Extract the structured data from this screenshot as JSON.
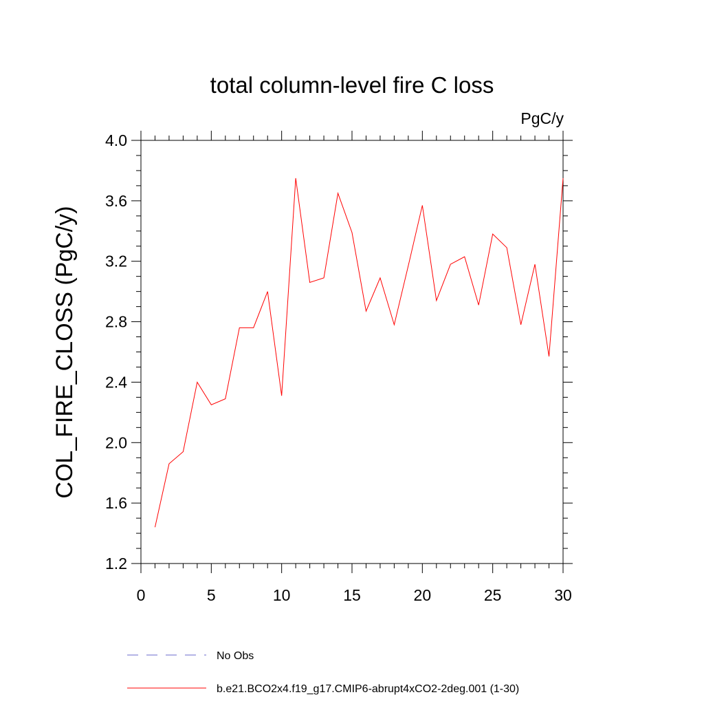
{
  "chart_data": {
    "type": "line",
    "title": "total column-level fire C loss",
    "units": "PgC/y",
    "y_label": "COL_FIRE_CLOSS  (PgC/y)",
    "x": [
      1,
      2,
      3,
      4,
      5,
      6,
      7,
      8,
      9,
      10,
      11,
      12,
      13,
      14,
      15,
      16,
      17,
      18,
      19,
      20,
      21,
      22,
      23,
      24,
      25,
      26,
      27,
      28,
      29,
      30
    ],
    "series": [
      {
        "name": "No Obs",
        "color": "#6a6acd",
        "dashed": true,
        "values": [
          null,
          null,
          null,
          null,
          null,
          null,
          null,
          null,
          null,
          null,
          null,
          null,
          null,
          null,
          null,
          null,
          null,
          null,
          null,
          null,
          null,
          null,
          null,
          null,
          null,
          null,
          null,
          null,
          null,
          null
        ]
      },
      {
        "name": "b.e21.BCO2x4.f19_g17.CMIP6-abrupt4xCO2-2deg.001 (1-30)",
        "color": "#ff0000",
        "dashed": false,
        "values": [
          1.44,
          1.86,
          1.94,
          2.4,
          2.25,
          2.29,
          2.76,
          2.76,
          3.0,
          2.31,
          3.75,
          3.06,
          3.09,
          3.65,
          3.39,
          2.87,
          3.09,
          2.78,
          3.17,
          3.57,
          2.94,
          3.18,
          3.23,
          2.91,
          3.38,
          3.29,
          2.78,
          3.18,
          2.57,
          3.75
        ]
      }
    ],
    "xlim": [
      0,
      30
    ],
    "xticks": [
      0,
      5,
      10,
      15,
      20,
      25,
      30
    ],
    "ylim": [
      1.2,
      4.0
    ],
    "yticks": [
      1.2,
      1.6,
      {
        "value": 2.0,
        "label": "2.0"
      },
      2.4,
      2.8,
      3.2,
      3.6,
      {
        "value": 4.0,
        "label": "4.0"
      }
    ]
  }
}
